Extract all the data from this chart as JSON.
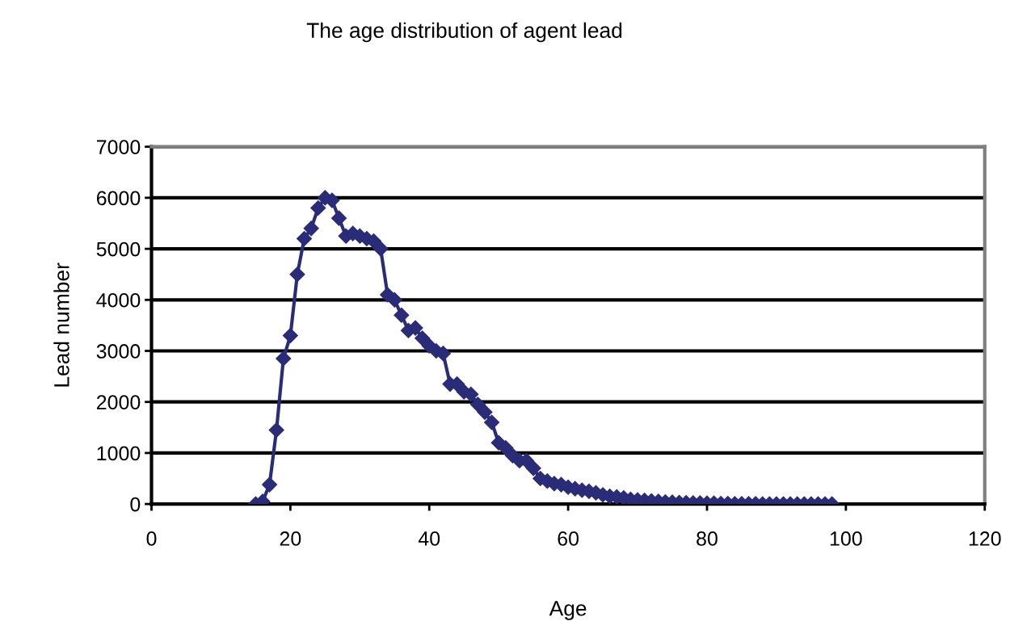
{
  "chart_data": {
    "type": "line",
    "title": "The age distribution of agent lead",
    "xlabel": "Age",
    "ylabel": "Lead number",
    "x": [
      15,
      16,
      17,
      18,
      19,
      20,
      21,
      22,
      23,
      24,
      25,
      26,
      27,
      28,
      29,
      30,
      31,
      32,
      33,
      34,
      35,
      36,
      37,
      38,
      39,
      40,
      41,
      42,
      43,
      44,
      45,
      46,
      47,
      48,
      49,
      50,
      51,
      52,
      53,
      54,
      55,
      56,
      57,
      58,
      59,
      60,
      61,
      62,
      63,
      64,
      65,
      66,
      67,
      68,
      69,
      70,
      71,
      72,
      73,
      74,
      75,
      76,
      77,
      78,
      79,
      80,
      81,
      82,
      83,
      84,
      85,
      86,
      87,
      88,
      89,
      90,
      91,
      92,
      93,
      94,
      95,
      96,
      97,
      98
    ],
    "series": [
      {
        "color": "#2a2c78",
        "values": [
          0,
          50,
          380,
          1450,
          2850,
          3300,
          4500,
          5200,
          5400,
          5800,
          6000,
          5950,
          5600,
          5250,
          5300,
          5250,
          5200,
          5150,
          5000,
          4100,
          4000,
          3700,
          3400,
          3450,
          3250,
          3100,
          3000,
          2950,
          2350,
          2350,
          2200,
          2150,
          1950,
          1800,
          1600,
          1200,
          1100,
          950,
          850,
          850,
          700,
          500,
          450,
          400,
          380,
          330,
          300,
          270,
          250,
          220,
          180,
          150,
          140,
          120,
          90,
          80,
          70,
          60,
          50,
          40,
          35,
          30,
          25,
          20,
          20,
          15,
          15,
          10,
          10,
          5,
          5,
          5,
          5,
          0,
          0,
          0,
          0,
          0,
          0,
          0,
          0,
          0,
          0,
          0
        ]
      }
    ],
    "xlim": [
      0,
      120
    ],
    "xticks": [
      0,
      20,
      40,
      60,
      80,
      100,
      120
    ],
    "ylim": [
      0,
      7000
    ],
    "yticks": [
      0,
      1000,
      2000,
      3000,
      4000,
      5000,
      6000,
      7000
    ],
    "grid": "y",
    "marker": "diamond",
    "line_style": "solid"
  }
}
